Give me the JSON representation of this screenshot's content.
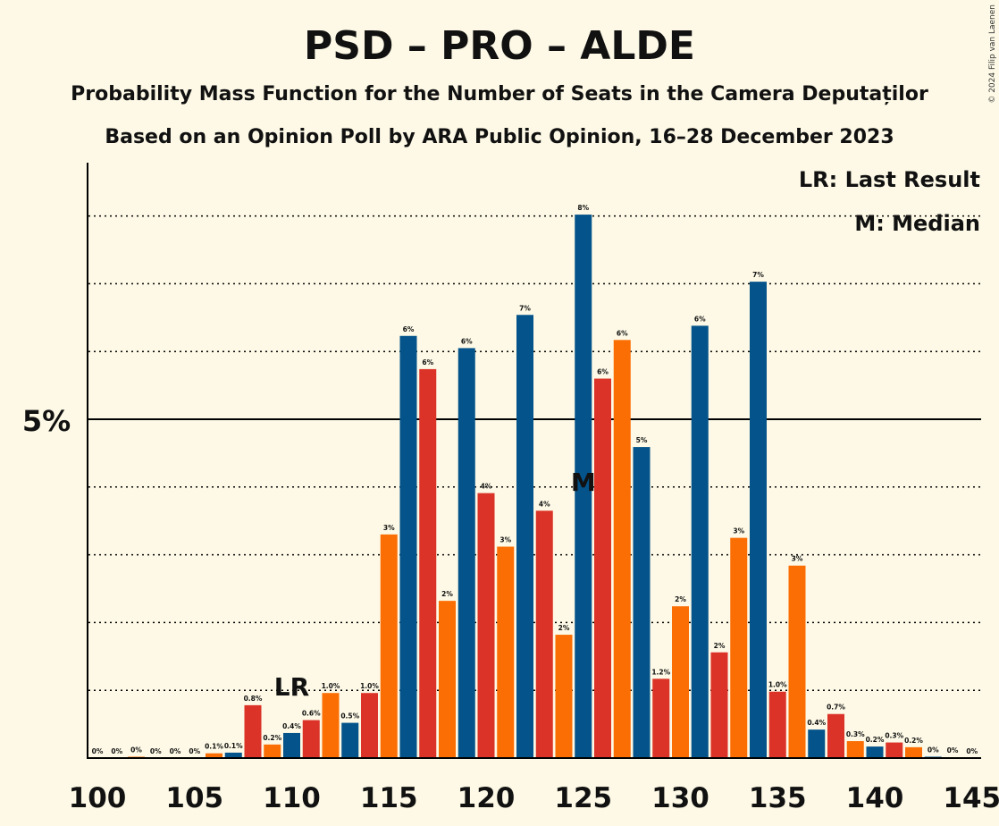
{
  "chart_data": {
    "type": "bar",
    "title": "PSD – PRO – ALDE",
    "subtitle": "Probability Mass Function for the Number of Seats in the Camera Deputaților",
    "subtitle2": "Based on an Opinion Poll by ARA Public Opinion, 16–28 December 2023",
    "copyright": "© 2024 Filip van Laenen",
    "legend": {
      "lr": "LR: Last Result",
      "median": "M: Median",
      "placement": "top-right"
    },
    "y_axis_label": "5%",
    "ylim": [
      0,
      8.75
    ],
    "xlim": [
      100,
      145
    ],
    "x_tick_labels": [
      "100",
      "105",
      "110",
      "115",
      "120",
      "125",
      "130",
      "135",
      "140",
      "145"
    ],
    "last_result_seat": 110,
    "last_result_label": "LR",
    "median_seat": 125,
    "median_label": "M",
    "colors": {
      "blue": "#04538a",
      "red": "#dc3328",
      "orange": "#fb6e04",
      "background": "#fdf9e6"
    },
    "series": [
      {
        "seat": 100,
        "value": 0,
        "label": "0%",
        "color": "blue"
      },
      {
        "seat": 101,
        "value": 0,
        "label": "0%",
        "color": "red"
      },
      {
        "seat": 102,
        "value": 0.02,
        "label": "0%",
        "color": "orange"
      },
      {
        "seat": 103,
        "value": 0,
        "label": "0%",
        "color": "blue"
      },
      {
        "seat": 104,
        "value": 0,
        "label": "0%",
        "color": "red"
      },
      {
        "seat": 105,
        "value": 0,
        "label": "0%",
        "color": "orange"
      },
      {
        "seat": 106,
        "value": 0.07,
        "label": "0.1%",
        "color": "orange"
      },
      {
        "seat": 107,
        "value": 0.08,
        "label": "0.1%",
        "color": "blue"
      },
      {
        "seat": 108,
        "value": 0.78,
        "label": "0.8%",
        "color": "red"
      },
      {
        "seat": 109,
        "value": 0.2,
        "label": "0.2%",
        "color": "orange"
      },
      {
        "seat": 110,
        "value": 0.37,
        "label": "0.4%",
        "color": "blue"
      },
      {
        "seat": 111,
        "value": 0.56,
        "label": "0.6%",
        "color": "red"
      },
      {
        "seat": 112,
        "value": 0.96,
        "label": "1.0%",
        "color": "orange"
      },
      {
        "seat": 113,
        "value": 0.52,
        "label": "0.5%",
        "color": "blue"
      },
      {
        "seat": 114,
        "value": 0.96,
        "label": "1.0%",
        "color": "red"
      },
      {
        "seat": 115,
        "value": 3.3,
        "label": "3%",
        "color": "orange"
      },
      {
        "seat": 116,
        "value": 6.23,
        "label": "6%",
        "color": "blue"
      },
      {
        "seat": 117,
        "value": 5.74,
        "label": "6%",
        "color": "red"
      },
      {
        "seat": 118,
        "value": 2.32,
        "label": "2%",
        "color": "orange"
      },
      {
        "seat": 119,
        "value": 6.05,
        "label": "6%",
        "color": "blue"
      },
      {
        "seat": 120,
        "value": 3.91,
        "label": "4%",
        "color": "red"
      },
      {
        "seat": 121,
        "value": 3.12,
        "label": "3%",
        "color": "orange"
      },
      {
        "seat": 122,
        "value": 6.54,
        "label": "7%",
        "color": "blue"
      },
      {
        "seat": 123,
        "value": 3.65,
        "label": "4%",
        "color": "red"
      },
      {
        "seat": 124,
        "value": 1.82,
        "label": "2%",
        "color": "orange"
      },
      {
        "seat": 125,
        "value": 8.02,
        "label": "8%",
        "color": "blue"
      },
      {
        "seat": 126,
        "value": 5.6,
        "label": "6%",
        "color": "red"
      },
      {
        "seat": 127,
        "value": 6.17,
        "label": "6%",
        "color": "orange"
      },
      {
        "seat": 128,
        "value": 4.59,
        "label": "5%",
        "color": "blue"
      },
      {
        "seat": 129,
        "value": 1.17,
        "label": "1.2%",
        "color": "red"
      },
      {
        "seat": 130,
        "value": 2.24,
        "label": "2%",
        "color": "orange"
      },
      {
        "seat": 131,
        "value": 6.38,
        "label": "6%",
        "color": "blue"
      },
      {
        "seat": 132,
        "value": 1.56,
        "label": "2%",
        "color": "red"
      },
      {
        "seat": 133,
        "value": 3.25,
        "label": "3%",
        "color": "orange"
      },
      {
        "seat": 134,
        "value": 7.03,
        "label": "7%",
        "color": "blue"
      },
      {
        "seat": 135,
        "value": 0.98,
        "label": "1.0%",
        "color": "red"
      },
      {
        "seat": 136,
        "value": 2.84,
        "label": "3%",
        "color": "orange"
      },
      {
        "seat": 137,
        "value": 0.42,
        "label": "0.4%",
        "color": "blue"
      },
      {
        "seat": 138,
        "value": 0.65,
        "label": "0.7%",
        "color": "red"
      },
      {
        "seat": 139,
        "value": 0.25,
        "label": "0.3%",
        "color": "orange"
      },
      {
        "seat": 140,
        "value": 0.17,
        "label": "0.2%",
        "color": "blue"
      },
      {
        "seat": 141,
        "value": 0.23,
        "label": "0.3%",
        "color": "red"
      },
      {
        "seat": 142,
        "value": 0.16,
        "label": "0.2%",
        "color": "orange"
      },
      {
        "seat": 143,
        "value": 0.02,
        "label": "0%",
        "color": "blue"
      },
      {
        "seat": 144,
        "value": 0.01,
        "label": "0%",
        "color": "red"
      },
      {
        "seat": 145,
        "value": 0,
        "label": "0%",
        "color": "orange"
      }
    ],
    "grid": {
      "dotted_every": 1,
      "solid_at": 5
    }
  }
}
